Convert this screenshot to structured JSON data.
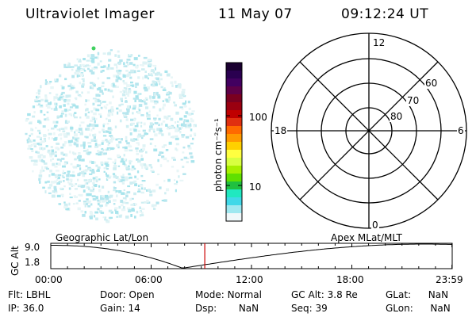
{
  "header": {
    "title": "Ultraviolet Imager",
    "date": "11 May 07",
    "time": "09:12:24 UT"
  },
  "colorbar": {
    "label": "photon cm⁻²s⁻¹",
    "ticks": [
      "100",
      "10"
    ],
    "colors": [
      "#1a0030",
      "#2a0050",
      "#420060",
      "#5e0048",
      "#7a0020",
      "#9a0010",
      "#c00000",
      "#e03010",
      "#ff6a00",
      "#ff9a00",
      "#ffd000",
      "#ffff40",
      "#d8ff40",
      "#a8f000",
      "#60e000",
      "#20c040",
      "#20e8c0",
      "#40d8e8",
      "#a0e8f0",
      "#f0f8fa"
    ]
  },
  "polar": {
    "mlt_labels": {
      "top": "12",
      "left": "18",
      "right": "6",
      "bottom": "0"
    },
    "lat_labels": [
      "60",
      "70",
      "80"
    ]
  },
  "altplot": {
    "ylabel": "GC Alt",
    "yticks": [
      "9.0",
      "1.8"
    ],
    "left_label": "Geographic Lat/Lon",
    "right_label": "Apex MLat/MLT",
    "xticks": [
      "00:00",
      "06:00",
      "12:00",
      "18:00",
      "23:59"
    ],
    "current_time_hours": 9.207,
    "marker_color": "#cc0000"
  },
  "info": {
    "flt_label": "Flt:",
    "flt_value": "LBHL",
    "ip_label": "IP:",
    "ip_value": "36.0",
    "door_label": "Door:",
    "door_value": "Open",
    "gain_label": "Gain:",
    "gain_value": "14",
    "mode_label": "Mode:",
    "mode_value": "Normal",
    "dsp_label": "Dsp:",
    "dsp_value": "NaN",
    "gcalt_label": "GC Alt:",
    "gcalt_value": "3.8 Re",
    "seq_label": "Seq:",
    "seq_value": "39",
    "glat_label": "GLat:",
    "glat_value": "NaN",
    "glon_label": "GLon:",
    "glon_value": "NaN"
  }
}
